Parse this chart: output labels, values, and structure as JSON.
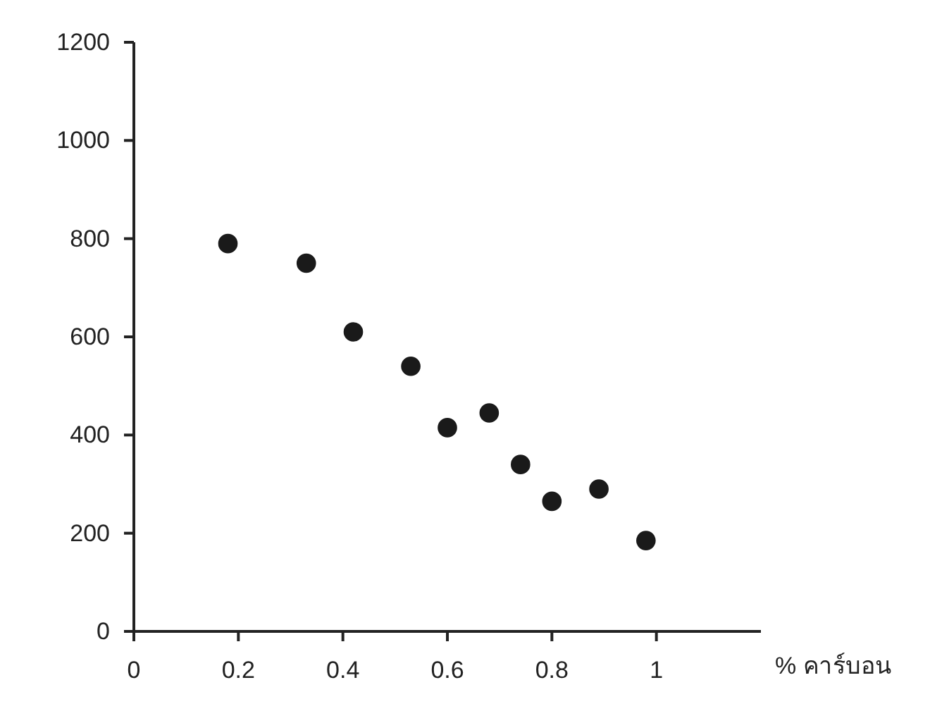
{
  "chart_data": {
    "type": "scatter",
    "xlabel": "% คาร์บอน",
    "x": [
      0.18,
      0.33,
      0.42,
      0.53,
      0.6,
      0.68,
      0.74,
      0.8,
      0.89,
      0.98
    ],
    "values": [
      790,
      750,
      610,
      540,
      415,
      445,
      340,
      265,
      290,
      185
    ],
    "color": "#1a1a1a",
    "marker": "circle",
    "xlim": [
      0,
      1.2
    ],
    "xticks": [
      0,
      0.2,
      0.4,
      0.6,
      0.8,
      1
    ],
    "ylim": [
      0,
      1200
    ],
    "yticks": [
      0,
      200,
      400,
      600,
      800,
      1000,
      1200
    ]
  }
}
